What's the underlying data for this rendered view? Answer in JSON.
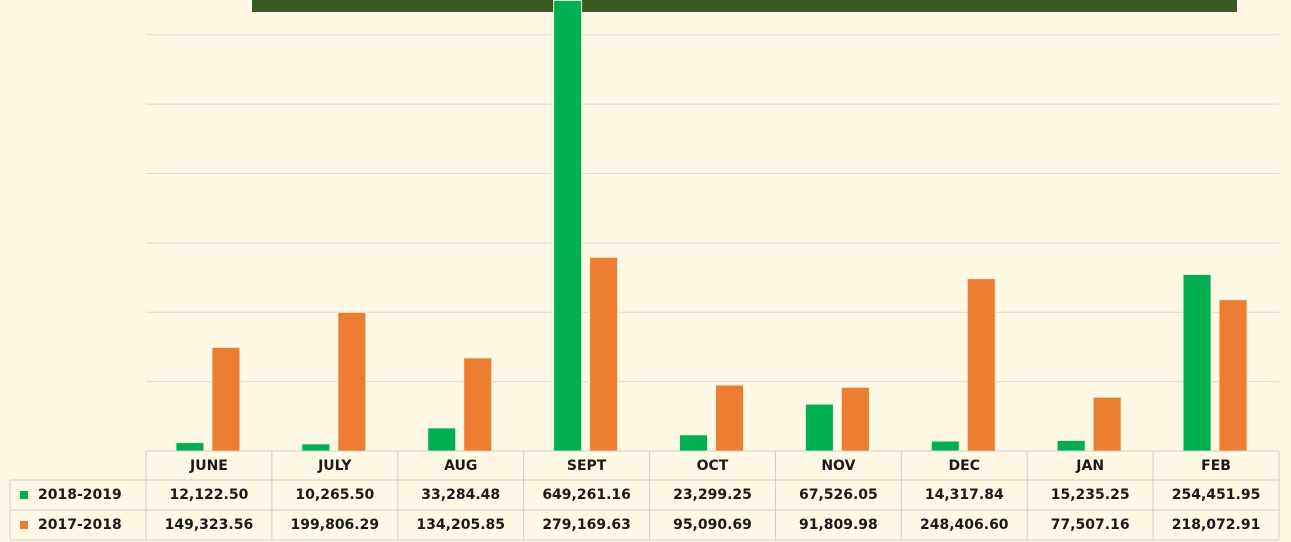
{
  "chart_data": {
    "type": "bar",
    "categories": [
      "JUNE",
      "JULY",
      "AUG",
      "SEPT",
      "OCT",
      "NOV",
      "DEC",
      "JAN",
      "FEB"
    ],
    "series": [
      {
        "name": "2018-2019",
        "color": "#00b050",
        "values": [
          12122.5,
          10265.5,
          33284.48,
          649261.16,
          23299.25,
          67526.05,
          14317.84,
          15235.25,
          254451.95
        ],
        "value_labels": [
          "12,122.50",
          "10,265.50",
          "33,284.48",
          "649,261.16",
          "23,299.25",
          "67,526.05",
          "14,317.84",
          "15,235.25",
          "254,451.95"
        ]
      },
      {
        "name": "2017-2018",
        "color": "#ed7d31",
        "values": [
          149323.56,
          199806.29,
          134205.85,
          279169.63,
          95090.69,
          91809.98,
          248406.6,
          77507.16,
          218072.91
        ],
        "value_labels": [
          "149,323.56",
          "199,806.29",
          "134,205.85",
          "279,169.63",
          "95,090.69",
          "91,809.98",
          "248,406.60",
          "77,507.16",
          "218,072.91"
        ]
      }
    ],
    "ylim": [
      0,
      650000
    ],
    "yticks": [
      0,
      100000,
      200000,
      300000,
      400000,
      500000,
      600000
    ],
    "grid": true
  }
}
